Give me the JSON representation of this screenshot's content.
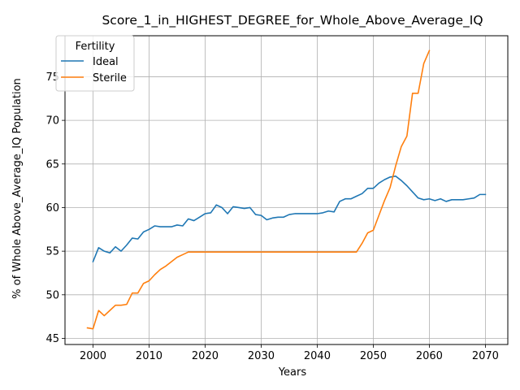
{
  "chart_data": {
    "type": "line",
    "title": "Score_1_in_HIGHEST_DEGREE_for_Whole_Above_Average_IQ",
    "xlabel": "Years",
    "ylabel": "% of Whole Above_Average_IQ Population",
    "xlim": [
      1995,
      2074
    ],
    "ylim": [
      44.3,
      79.7
    ],
    "xticks": [
      2000,
      2010,
      2020,
      2030,
      2040,
      2050,
      2060,
      2070
    ],
    "yticks": [
      45,
      50,
      55,
      60,
      65,
      70,
      75
    ],
    "grid": true,
    "legend": {
      "title": "Fertility",
      "placement": "top-left"
    },
    "series": [
      {
        "name": "Ideal",
        "color": "#1f77b4",
        "x": [
          2000,
          2001,
          2002,
          2003,
          2004,
          2005,
          2006,
          2007,
          2008,
          2009,
          2010,
          2011,
          2012,
          2013,
          2014,
          2015,
          2016,
          2017,
          2018,
          2019,
          2020,
          2021,
          2022,
          2023,
          2024,
          2025,
          2026,
          2027,
          2028,
          2029,
          2030,
          2031,
          2032,
          2033,
          2034,
          2035,
          2036,
          2037,
          2038,
          2039,
          2040,
          2041,
          2042,
          2043,
          2044,
          2045,
          2046,
          2047,
          2048,
          2049,
          2050,
          2051,
          2052,
          2053,
          2054,
          2055,
          2056,
          2057,
          2058,
          2059,
          2060,
          2061,
          2062,
          2063,
          2064,
          2065,
          2066,
          2067,
          2068,
          2069,
          2070
        ],
        "values": [
          53.8,
          55.4,
          55.0,
          54.8,
          55.5,
          55.0,
          55.7,
          56.5,
          56.4,
          57.2,
          57.5,
          57.9,
          57.8,
          57.8,
          57.8,
          58.0,
          57.9,
          58.7,
          58.5,
          58.9,
          59.3,
          59.4,
          60.3,
          60.0,
          59.3,
          60.1,
          60.0,
          59.9,
          60.0,
          59.2,
          59.1,
          58.6,
          58.8,
          58.9,
          58.9,
          59.2,
          59.3,
          59.3,
          59.3,
          59.3,
          59.3,
          59.4,
          59.6,
          59.5,
          60.7,
          61.0,
          61.0,
          61.3,
          61.6,
          62.2,
          62.2,
          62.8,
          63.2,
          63.5,
          63.6,
          63.1,
          62.5,
          61.8,
          61.1,
          60.9,
          61.0,
          60.8,
          61.0,
          60.7,
          60.9,
          60.9,
          60.9,
          61.0,
          61.1,
          61.5,
          61.5
        ]
      },
      {
        "name": "Sterile",
        "color": "#ff7f0e",
        "x": [
          1999,
          2000,
          2001,
          2002,
          2003,
          2004,
          2005,
          2006,
          2007,
          2008,
          2009,
          2010,
          2011,
          2012,
          2013,
          2014,
          2015,
          2016,
          2017,
          2018,
          2019,
          2020,
          2021,
          2022,
          2023,
          2024,
          2025,
          2026,
          2027,
          2028,
          2029,
          2030,
          2031,
          2032,
          2033,
          2034,
          2035,
          2036,
          2037,
          2038,
          2039,
          2040,
          2041,
          2042,
          2043,
          2044,
          2045,
          2046,
          2047,
          2048,
          2049,
          2050,
          2051,
          2052,
          2053,
          2054,
          2055,
          2056,
          2057,
          2058,
          2059,
          2060
        ],
        "values": [
          46.2,
          46.1,
          48.2,
          47.6,
          48.2,
          48.8,
          48.8,
          48.9,
          50.2,
          50.2,
          51.3,
          51.6,
          52.3,
          52.9,
          53.3,
          53.8,
          54.3,
          54.6,
          54.9,
          54.9,
          54.9,
          54.9,
          54.9,
          54.9,
          54.9,
          54.9,
          54.9,
          54.9,
          54.9,
          54.9,
          54.9,
          54.9,
          54.9,
          54.9,
          54.9,
          54.9,
          54.9,
          54.9,
          54.9,
          54.9,
          54.9,
          54.9,
          54.9,
          54.9,
          54.9,
          54.9,
          54.9,
          54.9,
          54.9,
          55.9,
          57.1,
          57.4,
          59.1,
          60.8,
          62.3,
          64.8,
          67.0,
          68.2,
          73.1,
          73.1,
          76.5,
          78.0
        ]
      }
    ]
  }
}
